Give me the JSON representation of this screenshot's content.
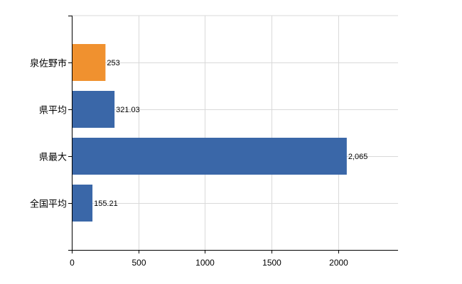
{
  "chart_data": {
    "type": "bar",
    "orientation": "horizontal",
    "categories": [
      "泉佐野市",
      "県平均",
      "県最大",
      "全国平均"
    ],
    "values": [
      253,
      321.03,
      2065,
      155.21
    ],
    "value_labels": [
      "253",
      "321.03",
      "2,065",
      "155.21"
    ],
    "highlight_colors": [
      "#f0912f",
      "#3a67a8",
      "#3a67a8",
      "#3a67a8"
    ],
    "xlim": [
      0,
      2450
    ],
    "xticks": [
      0,
      500,
      1000,
      1500,
      2000
    ],
    "xtick_labels": [
      "0",
      "500",
      "1000",
      "1500",
      "2000"
    ],
    "grid": true,
    "legend": "none"
  }
}
